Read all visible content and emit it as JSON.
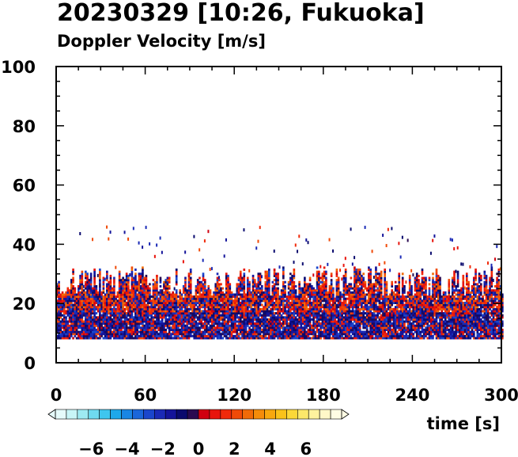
{
  "chart_data": {
    "type": "heatmap",
    "title": "20230329 [10:26, Fukuoka]",
    "subtitle": "Doppler Velocity [m/s]",
    "xlabel": "time [s]",
    "ylabel": "",
    "xlim": [
      0,
      300
    ],
    "ylim": [
      0,
      100
    ],
    "x_ticks": [
      "0",
      "60",
      "120",
      "180",
      "240",
      "300"
    ],
    "y_ticks": [
      "0",
      "20",
      "40",
      "60",
      "80",
      "100"
    ],
    "grid": false,
    "data_region": {
      "height_bottom": 8,
      "dense_top": 28,
      "sparse_top": 45
    },
    "colorbar": {
      "range": [
        -8,
        8
      ],
      "tick_labels": [
        "−6",
        "−4",
        "−2",
        "0",
        "2",
        "4",
        "6"
      ],
      "tick_values": [
        -6,
        -4,
        -2,
        0,
        2,
        4,
        6
      ],
      "colors": [
        "#e6fbfb",
        "#c8f5f7",
        "#9eeaf2",
        "#6fdaf0",
        "#3fc6ee",
        "#1ea8ea",
        "#1a86e4",
        "#1a66da",
        "#1a46cc",
        "#1a2ab6",
        "#14149a",
        "#0a0a6e",
        "#2a0a50",
        "#d00010",
        "#e8140c",
        "#f02a0a",
        "#f04a08",
        "#f06a08",
        "#f58c0a",
        "#f8a80e",
        "#fac21a",
        "#fcd838",
        "#fde86a",
        "#fef29e",
        "#fff8c8",
        "#fffce4"
      ]
    }
  }
}
